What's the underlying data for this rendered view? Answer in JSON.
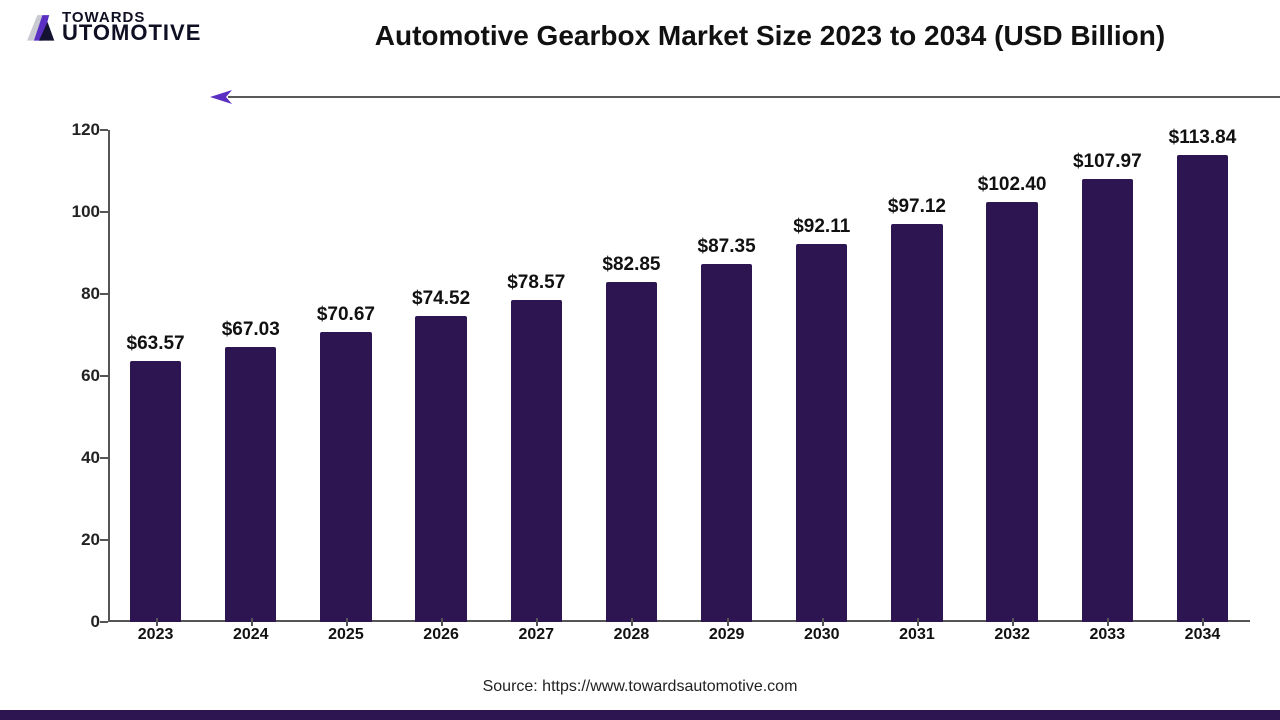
{
  "logo": {
    "line1": "TOWARDS",
    "line2": "UTOMOTIVE",
    "mark_colors": {
      "purple": "#5a2fc2",
      "dark": "#141432",
      "grey": "#c9c9d2"
    }
  },
  "title": "Automotive Gearbox Market Size 2023 to 2034 (USD Billion)",
  "arrow": {
    "color": "#5a2fc2",
    "line_color": "#222222"
  },
  "chart": {
    "type": "bar",
    "categories": [
      "2023",
      "2024",
      "2025",
      "2026",
      "2027",
      "2028",
      "2029",
      "2030",
      "2031",
      "2032",
      "2033",
      "2034"
    ],
    "values": [
      63.57,
      67.03,
      70.67,
      74.52,
      78.57,
      82.85,
      87.35,
      92.11,
      97.12,
      102.4,
      107.97,
      113.84
    ],
    "value_labels": [
      "$63.57",
      "$67.03",
      "$70.67",
      "$74.52",
      "$78.57",
      "$82.85",
      "$87.35",
      "$92.11",
      "$97.12",
      "$102.40",
      "$107.97",
      "$113.84"
    ],
    "bar_color": "#2c1550",
    "bar_width_pct": 54,
    "ylim": [
      0,
      120
    ],
    "ytick_step": 20,
    "yticks": [
      0,
      20,
      40,
      60,
      80,
      100,
      120
    ],
    "axis_color": "#555555",
    "axis_label_color": "#222222",
    "value_label_fontsize": 19,
    "category_fontsize": 16,
    "ytick_fontsize": 17,
    "background_color": "#ffffff"
  },
  "source": "Source: https://www.towardsautomotive.com",
  "footer_strip_color": "#2c1550"
}
